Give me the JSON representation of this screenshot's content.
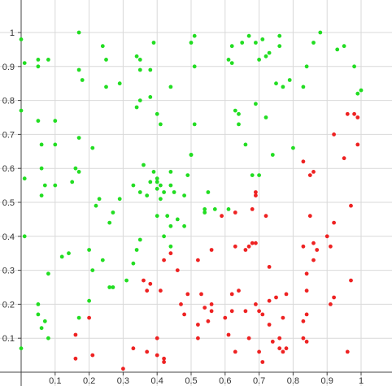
{
  "chart_data": {
    "type": "scatter",
    "title": "",
    "xlabel": "",
    "ylabel": "",
    "xlim": [
      0,
      1
    ],
    "ylim": [
      0,
      1
    ],
    "grid": true,
    "x_ticks": [
      "0.1",
      "0.2",
      "0.3",
      "0.4",
      "0.5",
      "0.6",
      "0.7",
      "0.8",
      "0.9",
      "1"
    ],
    "y_ticks": [
      "0.1",
      "0.2",
      "0.3",
      "0.4",
      "0.5",
      "0.6",
      "0.7",
      "0.8",
      "0.9",
      "1"
    ],
    "series": [
      {
        "color": "#22dd22",
        "points": [
          [
            0.0,
            0.98
          ],
          [
            0.01,
            0.91
          ],
          [
            0.05,
            0.92
          ],
          [
            0.05,
            0.9
          ],
          [
            0.08,
            0.92
          ],
          [
            0.17,
            1.0
          ],
          [
            0.17,
            0.89
          ],
          [
            0.18,
            0.86
          ],
          [
            0.24,
            0.96
          ],
          [
            0.25,
            0.92
          ],
          [
            0.25,
            0.84
          ],
          [
            0.29,
            0.85
          ],
          [
            0.34,
            0.93
          ],
          [
            0.35,
            0.92
          ],
          [
            0.35,
            0.89
          ],
          [
            0.38,
            0.89
          ],
          [
            0.39,
            0.97
          ],
          [
            0.44,
            0.84
          ],
          [
            0.5,
            0.97
          ],
          [
            0.51,
            0.99
          ],
          [
            0.51,
            0.9
          ],
          [
            0.61,
            0.92
          ],
          [
            0.62,
            0.96
          ],
          [
            0.62,
            0.91
          ],
          [
            0.65,
            0.97
          ],
          [
            0.67,
            0.99
          ],
          [
            0.69,
            0.97
          ],
          [
            0.7,
            0.92
          ],
          [
            0.71,
            0.98
          ],
          [
            0.72,
            0.93
          ],
          [
            0.73,
            0.94
          ],
          [
            0.75,
            0.85
          ],
          [
            0.76,
            0.96
          ],
          [
            0.76,
            0.99
          ],
          [
            0.77,
            0.84
          ],
          [
            0.79,
            0.86
          ],
          [
            0.83,
            0.84
          ],
          [
            0.84,
            0.9
          ],
          [
            0.86,
            0.97
          ],
          [
            0.88,
            1.0
          ],
          [
            0.93,
            0.95
          ],
          [
            0.95,
            0.96
          ],
          [
            0.98,
            0.9
          ],
          [
            0.99,
            0.82
          ],
          [
            1.0,
            0.83
          ],
          [
            0.0,
            0.77
          ],
          [
            0.05,
            0.74
          ],
          [
            0.1,
            0.74
          ],
          [
            0.17,
            0.69
          ],
          [
            0.21,
            0.66
          ],
          [
            0.34,
            0.78
          ],
          [
            0.35,
            0.8
          ],
          [
            0.38,
            0.81
          ],
          [
            0.4,
            0.76
          ],
          [
            0.41,
            0.73
          ],
          [
            0.51,
            0.73
          ],
          [
            0.63,
            0.77
          ],
          [
            0.64,
            0.73
          ],
          [
            0.64,
            0.76
          ],
          [
            0.66,
            0.67
          ],
          [
            0.69,
            0.79
          ],
          [
            0.72,
            0.75
          ],
          [
            0.74,
            0.64
          ],
          [
            0.8,
            0.66
          ],
          [
            0.01,
            0.57
          ],
          [
            0.06,
            0.67
          ],
          [
            0.06,
            0.6
          ],
          [
            0.07,
            0.55
          ],
          [
            0.06,
            0.52
          ],
          [
            0.1,
            0.67
          ],
          [
            0.1,
            0.55
          ],
          [
            0.15,
            0.56
          ],
          [
            0.16,
            0.6
          ],
          [
            0.17,
            0.59
          ],
          [
            0.22,
            0.49
          ],
          [
            0.23,
            0.51
          ],
          [
            0.26,
            0.44
          ],
          [
            0.27,
            0.47
          ],
          [
            0.29,
            0.51
          ],
          [
            0.33,
            0.55
          ],
          [
            0.35,
            0.53
          ],
          [
            0.36,
            0.61
          ],
          [
            0.37,
            0.52
          ],
          [
            0.38,
            0.56
          ],
          [
            0.39,
            0.59
          ],
          [
            0.4,
            0.56
          ],
          [
            0.4,
            0.57
          ],
          [
            0.4,
            0.54
          ],
          [
            0.4,
            0.46
          ],
          [
            0.41,
            0.55
          ],
          [
            0.41,
            0.51
          ],
          [
            0.42,
            0.53
          ],
          [
            0.43,
            0.46
          ],
          [
            0.44,
            0.59
          ],
          [
            0.44,
            0.55
          ],
          [
            0.44,
            0.43
          ],
          [
            0.45,
            0.53
          ],
          [
            0.46,
            0.45
          ],
          [
            0.48,
            0.52
          ],
          [
            0.48,
            0.43
          ],
          [
            0.49,
            0.58
          ],
          [
            0.5,
            0.64
          ],
          [
            0.5,
            0.64
          ],
          [
            0.54,
            0.48
          ],
          [
            0.54,
            0.47
          ],
          [
            0.55,
            0.53
          ],
          [
            0.57,
            0.48
          ],
          [
            0.61,
            0.48
          ],
          [
            0.68,
            0.58
          ],
          [
            0.7,
            0.58
          ],
          [
            0.01,
            0.4
          ],
          [
            0.08,
            0.29
          ],
          [
            0.12,
            0.34
          ],
          [
            0.14,
            0.35
          ],
          [
            0.2,
            0.36
          ],
          [
            0.21,
            0.3
          ],
          [
            0.24,
            0.33
          ],
          [
            0.26,
            0.25
          ],
          [
            0.27,
            0.25
          ],
          [
            0.31,
            0.27
          ],
          [
            0.33,
            0.32
          ],
          [
            0.34,
            0.36
          ],
          [
            0.35,
            0.39
          ],
          [
            0.42,
            0.4
          ],
          [
            0.44,
            0.37
          ],
          [
            0.05,
            0.2
          ],
          [
            0.05,
            0.17
          ],
          [
            0.06,
            0.13
          ],
          [
            0.07,
            0.15
          ],
          [
            0.08,
            0.1
          ],
          [
            0.17,
            0.16
          ],
          [
            0.2,
            0.21
          ],
          [
            0.0,
            0.07
          ]
        ]
      },
      {
        "color": "#ee2222",
        "points": [
          [
            0.96,
            0.76
          ],
          [
            0.98,
            0.76
          ],
          [
            0.99,
            0.75
          ],
          [
            0.92,
            0.7
          ],
          [
            0.99,
            0.67
          ],
          [
            0.95,
            0.63
          ],
          [
            0.83,
            0.62
          ],
          [
            0.86,
            0.59
          ],
          [
            0.85,
            0.58
          ],
          [
            0.69,
            0.53
          ],
          [
            0.69,
            0.52
          ],
          [
            0.68,
            0.48
          ],
          [
            0.63,
            0.47
          ],
          [
            0.59,
            0.46
          ],
          [
            0.72,
            0.46
          ],
          [
            0.85,
            0.46
          ],
          [
            0.97,
            0.49
          ],
          [
            0.92,
            0.44
          ],
          [
            0.9,
            0.4
          ],
          [
            0.91,
            0.37
          ],
          [
            0.83,
            0.37
          ],
          [
            0.86,
            0.38
          ],
          [
            0.63,
            0.37
          ],
          [
            0.66,
            0.36
          ],
          [
            0.67,
            0.37
          ],
          [
            0.68,
            0.38
          ],
          [
            0.69,
            0.38
          ],
          [
            0.56,
            0.36
          ],
          [
            0.52,
            0.33
          ],
          [
            0.44,
            0.35
          ],
          [
            0.42,
            0.33
          ],
          [
            0.46,
            0.3
          ],
          [
            0.73,
            0.31
          ],
          [
            0.84,
            0.29
          ],
          [
            0.86,
            0.33
          ],
          [
            0.87,
            0.36
          ],
          [
            0.36,
            0.27
          ],
          [
            0.37,
            0.24
          ],
          [
            0.38,
            0.26
          ],
          [
            0.41,
            0.24
          ],
          [
            0.49,
            0.23
          ],
          [
            0.53,
            0.23
          ],
          [
            0.62,
            0.23
          ],
          [
            0.64,
            0.24
          ],
          [
            0.69,
            0.2
          ],
          [
            0.73,
            0.21
          ],
          [
            0.75,
            0.22
          ],
          [
            0.78,
            0.23
          ],
          [
            0.84,
            0.24
          ],
          [
            0.97,
            0.27
          ],
          [
            0.47,
            0.2
          ],
          [
            0.54,
            0.19
          ],
          [
            0.56,
            0.2
          ],
          [
            0.56,
            0.18
          ],
          [
            0.6,
            0.16
          ],
          [
            0.62,
            0.18
          ],
          [
            0.66,
            0.18
          ],
          [
            0.7,
            0.18
          ],
          [
            0.71,
            0.17
          ],
          [
            0.73,
            0.14
          ],
          [
            0.77,
            0.16
          ],
          [
            0.83,
            0.15
          ],
          [
            0.84,
            0.17
          ],
          [
            0.91,
            0.2
          ],
          [
            0.92,
            0.22
          ],
          [
            0.16,
            0.11
          ],
          [
            0.2,
            0.16
          ],
          [
            0.21,
            0.05
          ],
          [
            0.33,
            0.07
          ],
          [
            0.37,
            0.06
          ],
          [
            0.4,
            0.1
          ],
          [
            0.4,
            0.05
          ],
          [
            0.42,
            0.04
          ],
          [
            0.48,
            0.17
          ],
          [
            0.52,
            0.14
          ],
          [
            0.52,
            0.1
          ],
          [
            0.55,
            0.15
          ],
          [
            0.61,
            0.11
          ],
          [
            0.63,
            0.06
          ],
          [
            0.67,
            0.1
          ],
          [
            0.7,
            0.06
          ],
          [
            0.71,
            0.03
          ],
          [
            0.74,
            0.09
          ],
          [
            0.76,
            0.1
          ],
          [
            0.76,
            0.07
          ],
          [
            0.77,
            0.06
          ],
          [
            0.78,
            0.07
          ],
          [
            0.83,
            0.1
          ],
          [
            0.84,
            0.09
          ],
          [
            0.96,
            0.06
          ],
          [
            0.16,
            0.04
          ],
          [
            0.3,
            0.01
          ],
          [
            0.42,
            0.03
          ]
        ]
      }
    ]
  }
}
